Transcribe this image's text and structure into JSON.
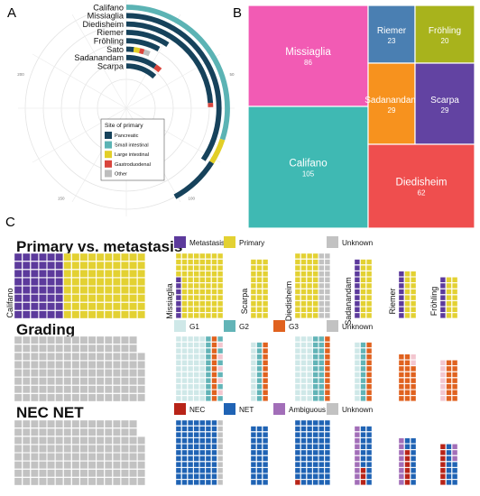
{
  "panels": {
    "a": "A",
    "b": "B",
    "c": "C"
  },
  "colors": {
    "pancreatic": "#16425b",
    "small_intestinal": "#5bb3b4",
    "large_intestinal": "#e2cf27",
    "gastroduodenal": "#d9453d",
    "other": "#bdbdbd",
    "metastasis": "#5c3a9c",
    "primary": "#e3d132",
    "unknown": "#c2c2c2",
    "g1": "#cfe8e8",
    "g2": "#62b4b7",
    "g3": "#e0621f",
    "nec": "#b82418",
    "net": "#1f63b4",
    "ambiguous": "#a26eb8"
  },
  "chart_data": [
    {
      "type": "radial-bar",
      "panel": "A",
      "legend_title": "Site of primary",
      "legend": [
        "Pancreatic",
        "Small intestinal",
        "Large intestinal",
        "Gastroduodenal",
        "Other"
      ],
      "ticks": [
        "50",
        "100",
        "150",
        "200"
      ],
      "studies": [
        {
          "name": "Califano",
          "segments": [
            {
              "site": "Small intestinal",
              "value": 75
            },
            {
              "site": "Large intestinal",
              "value": 10
            },
            {
              "site": "Pancreatic",
              "value": 20
            }
          ]
        },
        {
          "name": "Missiaglia",
          "segments": [
            {
              "site": "Pancreatic",
              "value": 86
            }
          ]
        },
        {
          "name": "Diedisheim",
          "segments": [
            {
              "site": "Pancreatic",
              "value": 60
            },
            {
              "site": "Gastroduodenal",
              "value": 2
            }
          ]
        },
        {
          "name": "Riemer",
          "segments": [
            {
              "site": "Pancreatic",
              "value": 23
            }
          ]
        },
        {
          "name": "Fröhling",
          "segments": [
            {
              "site": "Pancreatic",
              "value": 20
            }
          ]
        },
        {
          "name": "Sato",
          "segments": [
            {
              "site": "Pancreatic",
              "value": 5
            },
            {
              "site": "Large intestinal",
              "value": 4
            },
            {
              "site": "Gastroduodenal",
              "value": 3
            },
            {
              "site": "Other",
              "value": 4
            }
          ]
        },
        {
          "name": "Sadanandam",
          "segments": [
            {
              "site": "Pancreatic",
              "value": 24
            },
            {
              "site": "Gastroduodenal",
              "value": 5
            }
          ]
        },
        {
          "name": "Scarpa",
          "segments": [
            {
              "site": "Pancreatic",
              "value": 29
            }
          ]
        }
      ]
    },
    {
      "type": "treemap",
      "panel": "B",
      "items": [
        {
          "name": "Missiaglia",
          "value": 86,
          "color": "#f25bb4"
        },
        {
          "name": "Riemer",
          "value": 23,
          "color": "#4a7fb2"
        },
        {
          "name": "Fröhling",
          "value": 20,
          "color": "#a8b31c"
        },
        {
          "name": "Califano",
          "value": 105,
          "color": "#3fb9b3"
        },
        {
          "name": "Sadanandam",
          "value": 29,
          "color": "#f7921e"
        },
        {
          "name": "Scarpa",
          "value": 29,
          "color": "#6243a2"
        },
        {
          "name": "Diedisheim",
          "value": 62,
          "color": "#ef4e4e"
        }
      ]
    },
    {
      "type": "waffle",
      "panel": "C",
      "rows": [
        {
          "title": "Primary vs. metastasis",
          "legend": [
            "Metastasis",
            "Primary",
            "Unknown"
          ]
        },
        {
          "title": "Grading",
          "legend": [
            "G1",
            "G2",
            "G3",
            "Unknown"
          ]
        },
        {
          "title": "NEC NET",
          "legend": [
            "NEC",
            "NET",
            "Ambiguous",
            "Unknown"
          ]
        }
      ],
      "studies": [
        "Califano",
        "Missiaglia",
        "Scarpa",
        "Diedisheim",
        "Sadanandam",
        "Riemer",
        "Fröhling"
      ]
    }
  ]
}
